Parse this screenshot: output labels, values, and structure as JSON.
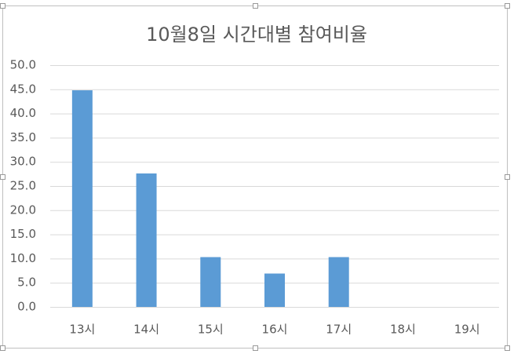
{
  "chart_data": {
    "type": "bar",
    "title": "10월8일 시간대별 참여비율",
    "categories": [
      "13시",
      "14시",
      "15시",
      "16시",
      "17시",
      "18시",
      "19시"
    ],
    "values": [
      44.8,
      27.6,
      10.3,
      6.9,
      10.3,
      0,
      0
    ],
    "color": "#5b9bd5",
    "ylim": [
      0,
      50
    ],
    "yticks": [
      {
        "value": 0,
        "label": "0.0"
      },
      {
        "value": 5,
        "label": "5.0"
      },
      {
        "value": 10,
        "label": "10.0"
      },
      {
        "value": 15,
        "label": "15.0"
      },
      {
        "value": 20,
        "label": "20.0"
      },
      {
        "value": 25,
        "label": "25.0"
      },
      {
        "value": 30,
        "label": "30.0"
      },
      {
        "value": 35,
        "label": "35.0"
      },
      {
        "value": 40,
        "label": "40.0"
      },
      {
        "value": 45,
        "label": "45.0"
      },
      {
        "value": 50,
        "label": "50.0"
      }
    ],
    "grid": true
  }
}
